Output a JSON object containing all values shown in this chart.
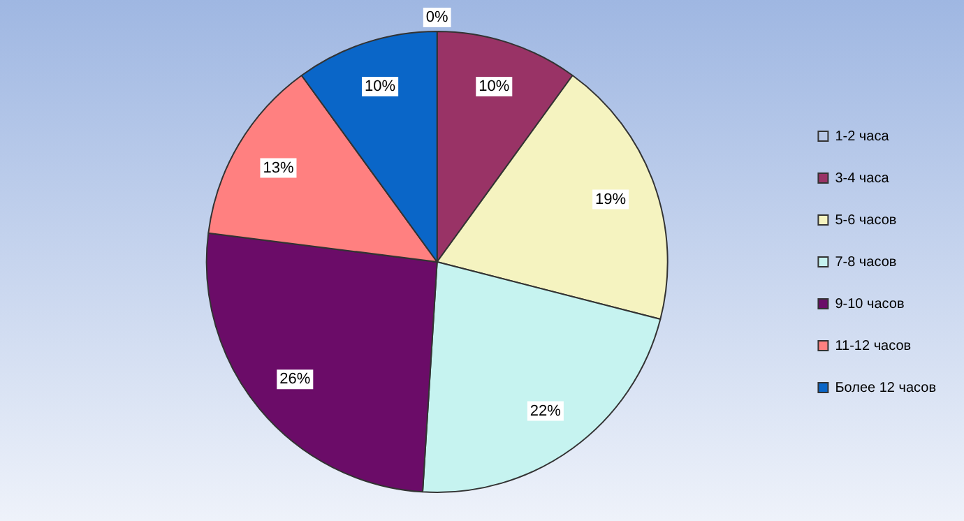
{
  "chart_data": {
    "type": "pie",
    "categories": [
      "1-2 часа",
      "3-4 часа",
      "5-6 часов",
      "7-8 часов",
      "9-10 часов",
      "11-12 часов",
      "Более 12 часов"
    ],
    "values": [
      0,
      10,
      19,
      22,
      26,
      13,
      10
    ],
    "colors": [
      "#b8c8e8",
      "#993366",
      "#f5f3c0",
      "#c6f3f0",
      "#6b0c68",
      "#ff8080",
      "#0a66c8"
    ],
    "value_labels": [
      "0%",
      "10%",
      "19%",
      "22%",
      "26%",
      "13%",
      "10%"
    ],
    "legend": "right"
  }
}
